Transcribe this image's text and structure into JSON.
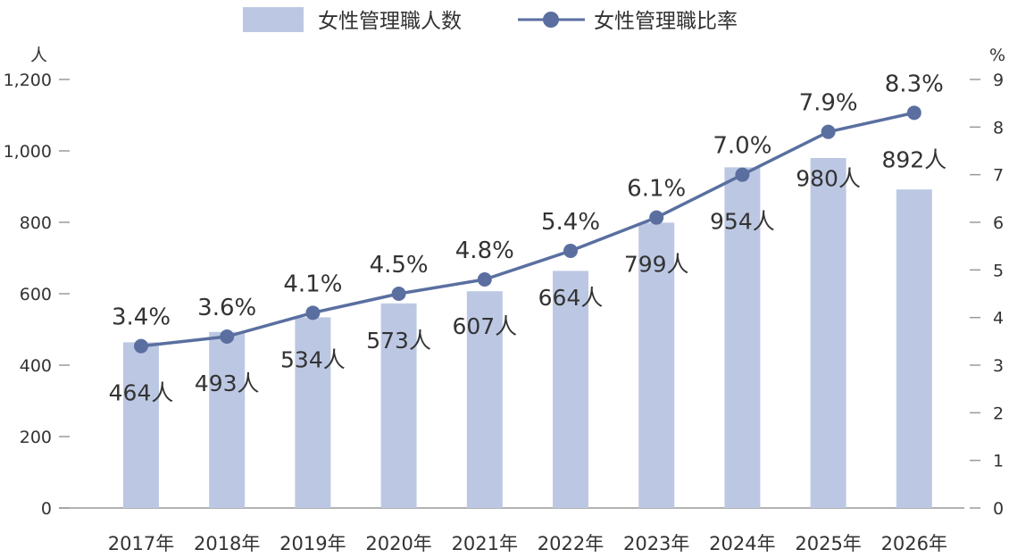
{
  "chart_data": {
    "type": "bar",
    "categories": [
      "2017年",
      "2018年",
      "2019年",
      "2020年",
      "2021年",
      "2022年",
      "2023年",
      "2024年",
      "2025年",
      "2026年"
    ],
    "series": [
      {
        "name": "女性管理職人数",
        "type": "bar",
        "axis": "left",
        "values": [
          464,
          493,
          534,
          573,
          607,
          664,
          799,
          954,
          980,
          892
        ],
        "labels": [
          "464人",
          "493人",
          "534人",
          "573人",
          "607人",
          "664人",
          "799人",
          "954人",
          "980人",
          "892人"
        ],
        "color": "#bcc8e3"
      },
      {
        "name": "女性管理職比率",
        "type": "line",
        "axis": "right",
        "values": [
          3.4,
          3.6,
          4.1,
          4.5,
          4.8,
          5.4,
          6.1,
          7.0,
          7.9,
          8.3
        ],
        "labels": [
          "3.4%",
          "3.6%",
          "4.1%",
          "4.5%",
          "4.8%",
          "5.4%",
          "6.1%",
          "7.0%",
          "7.9%",
          "8.3%"
        ],
        "color": "#5a6fa0"
      }
    ],
    "left_axis": {
      "unit": "人",
      "ylim": [
        0,
        1200
      ],
      "ticks": [
        0,
        200,
        400,
        600,
        800,
        1000,
        1200
      ],
      "tick_labels": [
        "0",
        "200",
        "400",
        "600",
        "800",
        "1,000",
        "1,200"
      ]
    },
    "right_axis": {
      "unit": "%",
      "ylim": [
        0,
        9
      ],
      "ticks": [
        0,
        1,
        2,
        3,
        4,
        5,
        6,
        7,
        8,
        9
      ],
      "tick_labels": [
        "0",
        "1",
        "2",
        "3",
        "4",
        "5",
        "6",
        "7",
        "8",
        "9"
      ]
    },
    "legend": {
      "placement": "top-center"
    },
    "grid": false
  }
}
